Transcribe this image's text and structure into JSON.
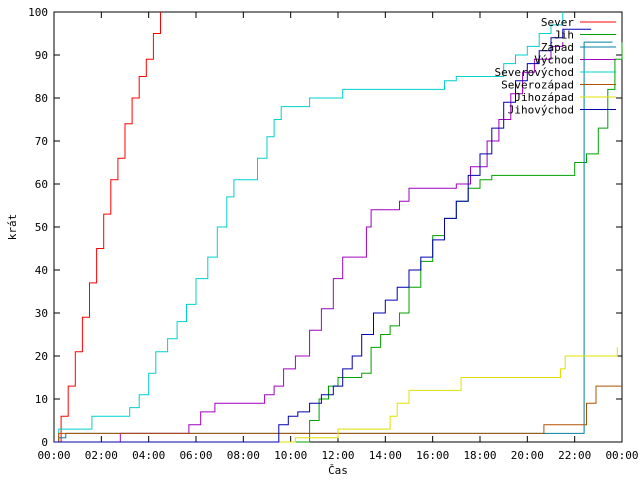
{
  "chart_data": {
    "type": "line",
    "xlabel": "Čas",
    "ylabel": "krát",
    "xlim": [
      0,
      24
    ],
    "ylim": [
      0,
      100
    ],
    "x_tick_labels": [
      "00:00",
      "02:00",
      "04:00",
      "06:00",
      "08:00",
      "10:00",
      "12:00",
      "14:00",
      "16:00",
      "18:00",
      "20:00",
      "22:00",
      "00:00"
    ],
    "x_tick_values": [
      0,
      2,
      4,
      6,
      8,
      10,
      12,
      14,
      16,
      18,
      20,
      22,
      24
    ],
    "y_tick_values": [
      0,
      10,
      20,
      30,
      40,
      50,
      60,
      70,
      80,
      90,
      100
    ],
    "grid": false,
    "legend": "top-right",
    "series": [
      {
        "name": "Sever",
        "color": "#ff0000",
        "points": [
          [
            0,
            0
          ],
          [
            0.3,
            6
          ],
          [
            0.6,
            13
          ],
          [
            0.9,
            21
          ],
          [
            1.2,
            29
          ],
          [
            1.5,
            37
          ],
          [
            1.8,
            45
          ],
          [
            2.1,
            53
          ],
          [
            2.4,
            61
          ],
          [
            2.7,
            66
          ],
          [
            3.0,
            74
          ],
          [
            3.3,
            80
          ],
          [
            3.6,
            85
          ],
          [
            3.9,
            89
          ],
          [
            4.2,
            95
          ],
          [
            4.5,
            100
          ]
        ]
      },
      {
        "name": "Jih",
        "color": "#00a000",
        "points": [
          [
            0,
            0
          ],
          [
            10.4,
            0
          ],
          [
            10.8,
            5
          ],
          [
            11.2,
            10
          ],
          [
            11.6,
            13
          ],
          [
            12,
            15
          ],
          [
            12.5,
            15
          ],
          [
            13,
            16
          ],
          [
            13.4,
            22
          ],
          [
            13.8,
            25
          ],
          [
            14.2,
            27
          ],
          [
            14.6,
            30
          ],
          [
            15,
            36
          ],
          [
            15.5,
            42
          ],
          [
            16,
            48
          ],
          [
            16.5,
            52
          ],
          [
            17,
            56
          ],
          [
            17.5,
            59
          ],
          [
            18,
            61
          ],
          [
            18.5,
            62
          ],
          [
            20,
            62
          ],
          [
            21.5,
            62
          ],
          [
            22,
            65
          ],
          [
            22.5,
            67
          ],
          [
            23,
            73
          ],
          [
            23.4,
            82
          ],
          [
            23.7,
            89
          ],
          [
            24,
            93
          ]
        ]
      },
      {
        "name": "Západ",
        "color": "#0080a0",
        "points": [
          [
            0,
            0
          ],
          [
            0.2,
            1
          ],
          [
            0.5,
            2
          ],
          [
            3,
            2
          ],
          [
            6,
            2
          ],
          [
            9,
            2
          ],
          [
            10,
            2
          ],
          [
            12,
            2
          ],
          [
            14,
            2
          ],
          [
            16,
            2
          ],
          [
            18,
            2
          ],
          [
            20,
            2
          ],
          [
            22,
            2
          ],
          [
            22.4,
            93
          ],
          [
            23.6,
            93
          ]
        ]
      },
      {
        "name": "Východ",
        "color": "#a000c0",
        "points": [
          [
            0,
            0
          ],
          [
            2.7,
            0
          ],
          [
            2.8,
            2
          ],
          [
            5.5,
            2
          ],
          [
            5.7,
            4
          ],
          [
            6.2,
            7
          ],
          [
            6.8,
            9
          ],
          [
            8.5,
            9
          ],
          [
            8.9,
            11
          ],
          [
            9.3,
            13
          ],
          [
            9.7,
            17
          ],
          [
            10.2,
            20
          ],
          [
            10.8,
            26
          ],
          [
            11.3,
            31
          ],
          [
            11.8,
            38
          ],
          [
            12.2,
            43
          ],
          [
            13.0,
            43
          ],
          [
            13.2,
            50
          ],
          [
            13.4,
            54
          ],
          [
            14.3,
            54
          ],
          [
            14.6,
            56
          ],
          [
            15.0,
            59
          ],
          [
            16.5,
            59
          ],
          [
            17.0,
            60
          ],
          [
            17.6,
            64
          ],
          [
            18.3,
            70
          ],
          [
            18.8,
            75
          ],
          [
            19.3,
            81
          ],
          [
            19.8,
            86
          ],
          [
            20.3,
            89
          ],
          [
            21.0,
            92
          ],
          [
            21.5,
            93
          ]
        ]
      },
      {
        "name": "Severovýchod",
        "color": "#00d0d0",
        "points": [
          [
            0,
            0
          ],
          [
            0.2,
            3
          ],
          [
            1.5,
            3
          ],
          [
            1.6,
            6
          ],
          [
            2.8,
            6
          ],
          [
            3.2,
            8
          ],
          [
            3.6,
            11
          ],
          [
            4.0,
            16
          ],
          [
            4.3,
            21
          ],
          [
            4.8,
            24
          ],
          [
            5.2,
            28
          ],
          [
            5.6,
            32
          ],
          [
            6.0,
            38
          ],
          [
            6.5,
            43
          ],
          [
            6.9,
            50
          ],
          [
            7.3,
            57
          ],
          [
            7.6,
            61
          ],
          [
            8.3,
            61
          ],
          [
            8.6,
            66
          ],
          [
            9.0,
            71
          ],
          [
            9.3,
            75
          ],
          [
            9.6,
            78
          ],
          [
            10.5,
            78
          ],
          [
            10.8,
            80
          ],
          [
            11.8,
            80
          ],
          [
            12.2,
            82
          ],
          [
            16.0,
            82
          ],
          [
            16.5,
            84
          ],
          [
            17.0,
            85
          ],
          [
            18.5,
            85
          ],
          [
            19.0,
            88
          ],
          [
            19.5,
            90
          ],
          [
            20.0,
            92
          ],
          [
            20.5,
            95
          ],
          [
            21.0,
            97
          ],
          [
            21.5,
            100
          ]
        ]
      },
      {
        "name": "Severozápad",
        "color": "#b05000",
        "points": [
          [
            0,
            0
          ],
          [
            0.2,
            2
          ],
          [
            4,
            2
          ],
          [
            8,
            2
          ],
          [
            12,
            2
          ],
          [
            16,
            2
          ],
          [
            18,
            2
          ],
          [
            20.5,
            2
          ],
          [
            20.7,
            4
          ],
          [
            22.0,
            4
          ],
          [
            22.5,
            9
          ],
          [
            22.9,
            13
          ],
          [
            24,
            13
          ]
        ]
      },
      {
        "name": "Jihozápad",
        "color": "#e0e000",
        "points": [
          [
            0,
            0
          ],
          [
            10.1,
            0
          ],
          [
            10.2,
            1
          ],
          [
            11.8,
            1
          ],
          [
            12,
            3
          ],
          [
            14,
            3
          ],
          [
            14.2,
            6
          ],
          [
            14.5,
            9
          ],
          [
            15,
            12
          ],
          [
            17,
            12
          ],
          [
            17.2,
            15
          ],
          [
            21,
            15
          ],
          [
            21.4,
            17
          ],
          [
            21.6,
            20
          ],
          [
            23.5,
            20
          ],
          [
            23.8,
            22
          ]
        ]
      },
      {
        "name": "Jihovýchod",
        "color": "#0000b0",
        "points": [
          [
            0,
            0
          ],
          [
            9.2,
            0
          ],
          [
            9.5,
            4
          ],
          [
            9.9,
            6
          ],
          [
            10.3,
            7
          ],
          [
            10.8,
            9
          ],
          [
            11.3,
            11
          ],
          [
            11.8,
            13
          ],
          [
            12.2,
            17
          ],
          [
            12.6,
            20
          ],
          [
            13.0,
            25
          ],
          [
            13.5,
            30
          ],
          [
            14.0,
            33
          ],
          [
            14.5,
            36
          ],
          [
            15.0,
            40
          ],
          [
            15.5,
            43
          ],
          [
            16.0,
            47
          ],
          [
            16.5,
            52
          ],
          [
            17.0,
            56
          ],
          [
            17.5,
            62
          ],
          [
            18.0,
            67
          ],
          [
            18.5,
            73
          ],
          [
            19.0,
            79
          ],
          [
            19.5,
            84
          ],
          [
            20.0,
            88
          ],
          [
            20.5,
            91
          ],
          [
            21.0,
            94
          ],
          [
            21.5,
            96
          ],
          [
            22.3,
            96
          ],
          [
            22.7,
            96
          ]
        ]
      }
    ]
  }
}
